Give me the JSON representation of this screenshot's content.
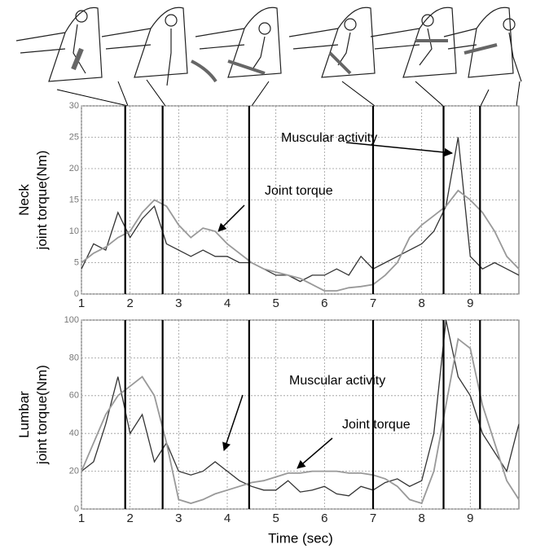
{
  "chart_data": [
    {
      "type": "line",
      "ylabel": [
        "Neck",
        "joint torque(Nm)"
      ],
      "x": [
        1,
        1.25,
        1.5,
        1.75,
        2,
        2.25,
        2.5,
        2.75,
        3,
        3.25,
        3.5,
        3.75,
        4,
        4.25,
        4.5,
        4.75,
        5,
        5.25,
        5.5,
        5.75,
        6,
        6.25,
        6.5,
        6.75,
        7,
        7.25,
        7.5,
        7.75,
        8,
        8.25,
        8.5,
        8.75,
        9,
        9.25,
        9.5,
        9.75,
        10
      ],
      "series": [
        {
          "color": "#333333",
          "values": [
            4,
            8,
            7,
            13,
            9,
            12,
            14,
            8,
            7,
            6,
            7,
            6,
            6,
            5,
            5,
            4,
            3,
            3,
            2,
            3,
            3,
            4,
            3,
            6,
            4,
            5,
            6,
            7,
            8,
            10,
            14,
            25,
            6,
            4,
            5,
            4,
            3
          ]
        },
        {
          "color": "#999999",
          "values": [
            5,
            6.5,
            7.5,
            9,
            10,
            13,
            15,
            14,
            11,
            9,
            10.5,
            10,
            8,
            6.5,
            5,
            4,
            3.5,
            3,
            2.5,
            1.5,
            0.5,
            0.5,
            1,
            1.2,
            1.5,
            3,
            5,
            9,
            11,
            12.5,
            14,
            16.5,
            15,
            13,
            10,
            6,
            4
          ]
        }
      ],
      "annotations": [
        "Muscular activity",
        "Joint torque"
      ],
      "events": [
        1.9,
        2.67,
        4.45,
        7.0,
        8.45,
        9.2
      ],
      "xlim": [
        1,
        10
      ],
      "xticks": [
        1,
        2,
        3,
        4,
        5,
        6,
        7,
        8,
        9
      ],
      "ylim": [
        0,
        30
      ],
      "yticks": [
        0,
        5,
        10,
        15,
        20,
        25,
        30
      ],
      "grid": true
    },
    {
      "type": "line",
      "ylabel": [
        "Lumbar",
        "joint torque(Nm)"
      ],
      "xlabel": "Time (sec)",
      "x": [
        1,
        1.25,
        1.5,
        1.75,
        2,
        2.25,
        2.5,
        2.75,
        3,
        3.25,
        3.5,
        3.75,
        4,
        4.25,
        4.5,
        4.75,
        5,
        5.25,
        5.5,
        5.75,
        6,
        6.25,
        6.5,
        6.75,
        7,
        7.25,
        7.5,
        7.75,
        8,
        8.25,
        8.5,
        8.75,
        9,
        9.25,
        9.5,
        9.75,
        10
      ],
      "series": [
        {
          "color": "#333333",
          "values": [
            20,
            25,
            45,
            70,
            40,
            50,
            25,
            35,
            20,
            18,
            20,
            25,
            20,
            15,
            12,
            10,
            10,
            15,
            9,
            10,
            12,
            8,
            7,
            12,
            10,
            14,
            16,
            12,
            15,
            40,
            100,
            70,
            60,
            40,
            30,
            20,
            45
          ]
        },
        {
          "color": "#999999",
          "values": [
            20,
            35,
            50,
            60,
            65,
            70,
            60,
            35,
            5,
            3,
            5,
            8,
            10,
            12,
            14,
            15,
            17,
            19,
            19,
            20,
            20,
            20,
            19,
            19,
            18,
            16,
            12,
            5,
            3,
            20,
            55,
            90,
            85,
            55,
            35,
            15,
            5
          ]
        }
      ],
      "annotations": [
        "Muscular activity",
        "Joint torque"
      ],
      "events": [
        1.9,
        2.67,
        4.45,
        7.0,
        8.45,
        9.2
      ],
      "xlim": [
        1,
        10
      ],
      "xticks": [
        1,
        2,
        3,
        4,
        5,
        6,
        7,
        8,
        9
      ],
      "ylim": [
        0,
        100
      ],
      "yticks": [
        0,
        20,
        40,
        60,
        80,
        100
      ],
      "grid": true
    }
  ]
}
